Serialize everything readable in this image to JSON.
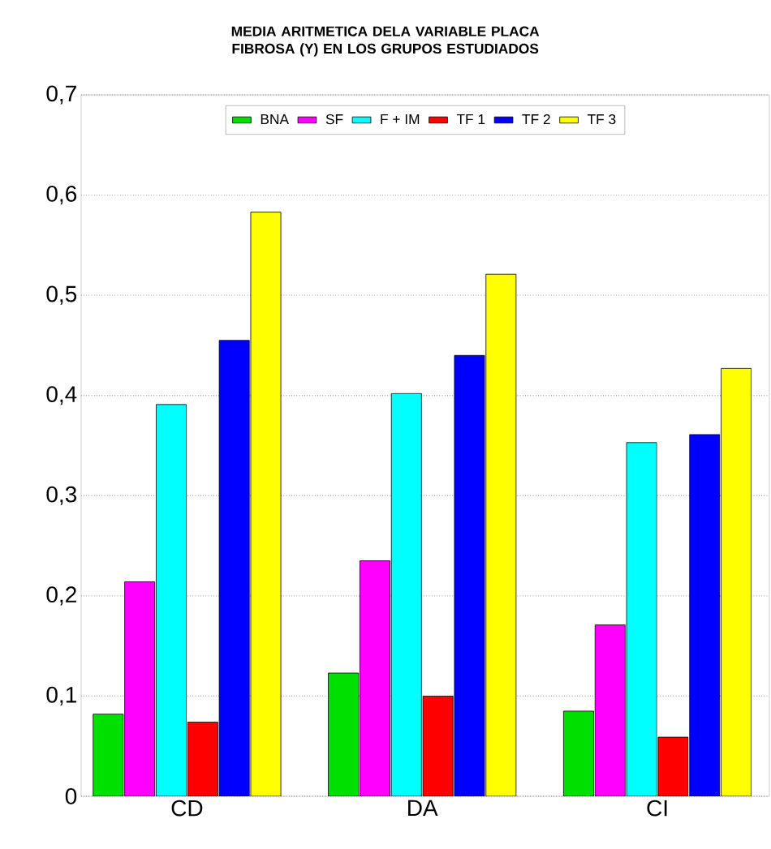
{
  "chart_data": {
    "type": "bar",
    "title": "MEDIA ARITMETICA DELA VARIABLE PLACA FIBROSA (Y) EN LOS GRUPOS ESTUDIADOS",
    "categories": [
      "CD",
      "DA",
      "CI"
    ],
    "series": [
      {
        "name": "BNA",
        "color": "#00e000",
        "values": [
          0.082,
          0.123,
          0.085
        ]
      },
      {
        "name": "SF",
        "color": "#ff00ff",
        "values": [
          0.214,
          0.235,
          0.171
        ]
      },
      {
        "name": "F + IM",
        "color": "#00ffff",
        "values": [
          0.391,
          0.402,
          0.353
        ]
      },
      {
        "name": "TF 1",
        "color": "#ff0000",
        "values": [
          0.074,
          0.1,
          0.059
        ]
      },
      {
        "name": "TF 2",
        "color": "#0000ff",
        "values": [
          0.455,
          0.44,
          0.361
        ]
      },
      {
        "name": "TF 3",
        "color": "#ffff00",
        "values": [
          0.583,
          0.521,
          0.427
        ]
      }
    ],
    "ylim": [
      0,
      0.7
    ],
    "yticks": [
      0,
      {
        "value": 0.1,
        "label": "0,1"
      },
      {
        "value": 0.2,
        "label": "0,2"
      },
      {
        "value": 0.3,
        "label": "0,3"
      },
      {
        "value": 0.4,
        "label": "0,4"
      },
      {
        "value": 0.5,
        "label": "0,5"
      },
      {
        "value": 0.6,
        "label": "0,6"
      },
      {
        "value": 0.7,
        "label": "0,7"
      }
    ],
    "grid": "y",
    "legend": "top"
  }
}
